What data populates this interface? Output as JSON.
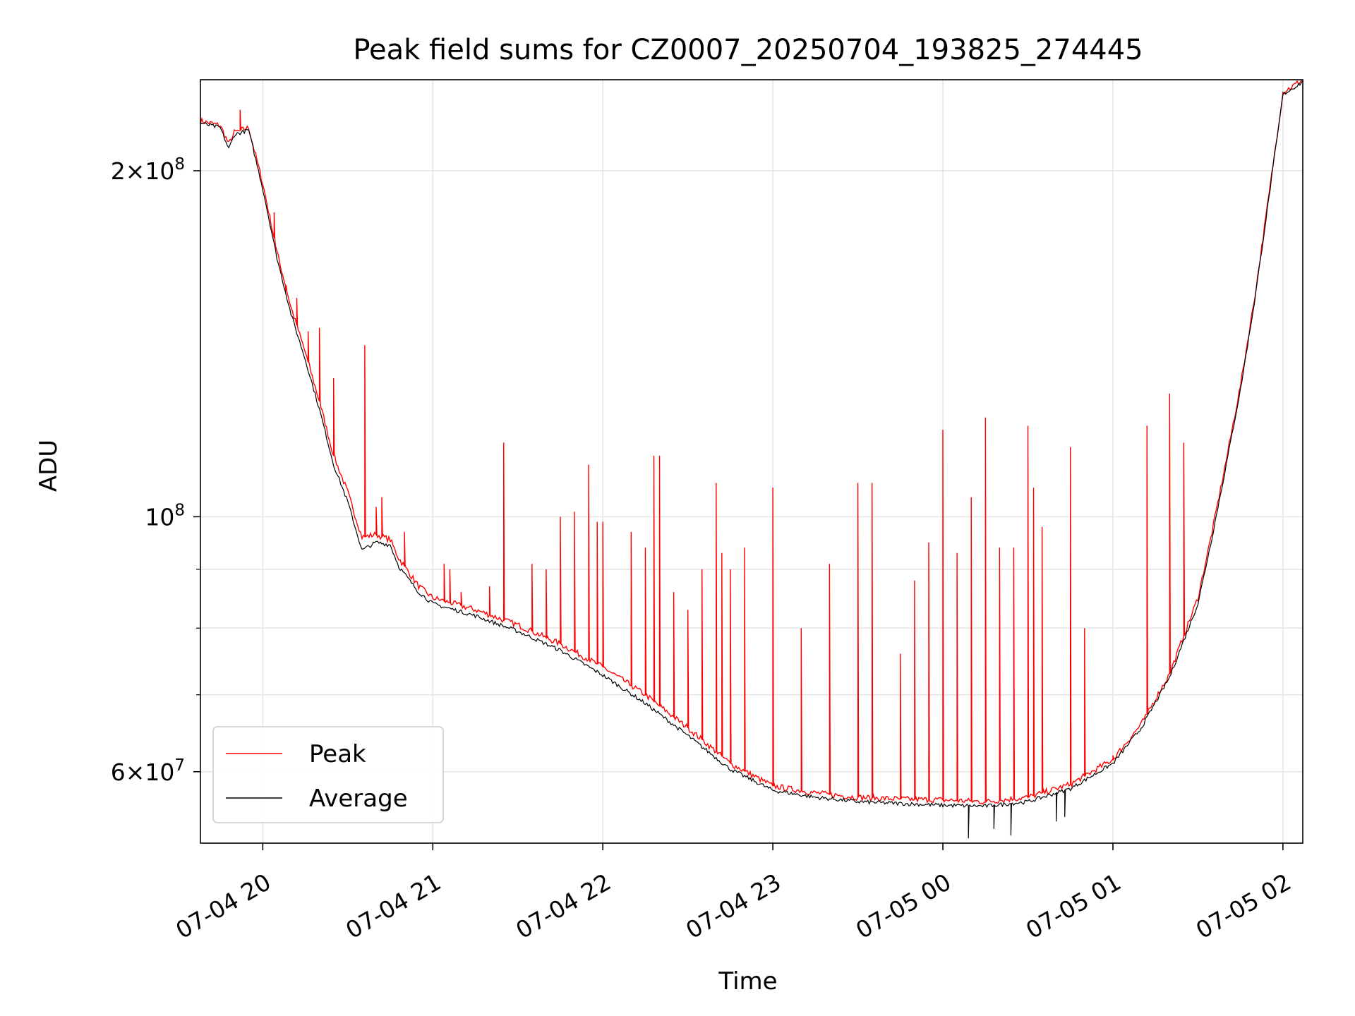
{
  "chart_data": {
    "type": "line",
    "title": "Peak field sums for CZ0007_20250704_193825_274445",
    "xlabel": "Time",
    "ylabel": "ADU",
    "yscale": "log",
    "xlim": [
      "07-04 19:38",
      "07-05 02:07"
    ],
    "ylim": [
      52000000,
      240000000
    ],
    "grid": true,
    "legend_position": "lower-left",
    "x_ticks": [
      "07-04 20",
      "07-04 21",
      "07-04 22",
      "07-04 23",
      "07-05 00",
      "07-05 01",
      "07-05 02"
    ],
    "x_tick_times": [
      "07-04 20:00",
      "07-04 21:00",
      "07-04 22:00",
      "07-04 23:00",
      "07-05 00:00",
      "07-05 01:00",
      "07-05 02:00"
    ],
    "y_major_ticks": [
      {
        "value": 60000000,
        "mantissa": "6",
        "exponent": "7"
      },
      {
        "value": 100000000,
        "mantissa": "",
        "exponent": "8"
      },
      {
        "value": 200000000,
        "mantissa": "2",
        "exponent": "8"
      }
    ],
    "y_minor_ticks": [
      70000000,
      80000000,
      90000000
    ],
    "series": [
      {
        "name": "Peak",
        "color": "#ff0000",
        "baseline": [
          [
            "07-04 19:38",
            221000000
          ],
          [
            "07-04 19:45",
            219000000
          ],
          [
            "07-04 19:48",
            211000000
          ],
          [
            "07-04 19:50",
            216000000
          ],
          [
            "07-04 19:55",
            218000000
          ],
          [
            "07-04 20:00",
            195000000
          ],
          [
            "07-04 20:05",
            170000000
          ],
          [
            "07-04 20:10",
            152000000
          ],
          [
            "07-04 20:15",
            139000000
          ],
          [
            "07-04 20:20",
            126000000
          ],
          [
            "07-04 20:25",
            113000000
          ],
          [
            "07-04 20:30",
            105000000
          ],
          [
            "07-04 20:35",
            96000000
          ],
          [
            "07-04 20:40",
            96500000
          ],
          [
            "07-04 20:45",
            95500000
          ],
          [
            "07-04 20:48",
            92000000
          ],
          [
            "07-04 20:55",
            87000000
          ],
          [
            "07-04 21:00",
            85000000
          ],
          [
            "07-04 21:15",
            83000000
          ],
          [
            "07-04 21:30",
            80500000
          ],
          [
            "07-04 21:45",
            77500000
          ],
          [
            "07-04 22:00",
            74000000
          ],
          [
            "07-04 22:15",
            70000000
          ],
          [
            "07-04 22:30",
            65500000
          ],
          [
            "07-04 22:45",
            61000000
          ],
          [
            "07-04 23:00",
            58300000
          ],
          [
            "07-04 23:15",
            57500000
          ],
          [
            "07-04 23:30",
            57000000
          ],
          [
            "07-04 23:45",
            56800000
          ],
          [
            "07-05 00:00",
            56700000
          ],
          [
            "07-05 00:15",
            56500000
          ],
          [
            "07-05 00:30",
            57000000
          ],
          [
            "07-05 00:45",
            58500000
          ],
          [
            "07-05 01:00",
            61500000
          ],
          [
            "07-05 01:10",
            66000000
          ],
          [
            "07-05 01:20",
            73000000
          ],
          [
            "07-05 01:30",
            85000000
          ],
          [
            "07-05 01:35",
            97000000
          ],
          [
            "07-05 01:40",
            112000000
          ],
          [
            "07-05 01:45",
            130000000
          ],
          [
            "07-05 01:50",
            155000000
          ],
          [
            "07-05 01:55",
            190000000
          ],
          [
            "07-05 02:00",
            234000000
          ],
          [
            "07-05 02:07",
            240000000
          ]
        ],
        "spikes": [
          [
            "07-04 19:52",
            226000000
          ],
          [
            "07-04 20:04",
            184000000
          ],
          [
            "07-04 20:08",
            157000000
          ],
          [
            "07-04 20:12",
            155000000
          ],
          [
            "07-04 20:16",
            145000000
          ],
          [
            "07-04 20:20",
            146000000
          ],
          [
            "07-04 20:25",
            132000000
          ],
          [
            "07-04 20:36",
            141000000
          ],
          [
            "07-04 20:40",
            102000000
          ],
          [
            "07-04 20:42",
            104000000
          ],
          [
            "07-04 20:50",
            97000000
          ],
          [
            "07-04 21:04",
            91000000
          ],
          [
            "07-04 21:06",
            90000000
          ],
          [
            "07-04 21:10",
            86000000
          ],
          [
            "07-04 21:20",
            87000000
          ],
          [
            "07-04 21:25",
            116000000
          ],
          [
            "07-04 21:35",
            91000000
          ],
          [
            "07-04 21:40",
            90000000
          ],
          [
            "07-04 21:45",
            100000000
          ],
          [
            "07-04 21:50",
            101000000
          ],
          [
            "07-04 21:55",
            111000000
          ],
          [
            "07-04 21:58",
            99000000
          ],
          [
            "07-04 22:00",
            99000000
          ],
          [
            "07-04 22:10",
            97000000
          ],
          [
            "07-04 22:15",
            94000000
          ],
          [
            "07-04 22:18",
            113000000
          ],
          [
            "07-04 22:20",
            113000000
          ],
          [
            "07-04 22:25",
            86000000
          ],
          [
            "07-04 22:30",
            83000000
          ],
          [
            "07-04 22:35",
            90000000
          ],
          [
            "07-04 22:40",
            107000000
          ],
          [
            "07-04 22:42",
            93000000
          ],
          [
            "07-04 22:45",
            90000000
          ],
          [
            "07-04 22:50",
            94000000
          ],
          [
            "07-04 23:00",
            106000000
          ],
          [
            "07-04 23:10",
            80000000
          ],
          [
            "07-04 23:20",
            91000000
          ],
          [
            "07-04 23:30",
            107000000
          ],
          [
            "07-04 23:35",
            107000000
          ],
          [
            "07-04 23:45",
            76000000
          ],
          [
            "07-04 23:50",
            88000000
          ],
          [
            "07-04 23:55",
            95000000
          ],
          [
            "07-05 00:00",
            119000000
          ],
          [
            "07-05 00:05",
            93000000
          ],
          [
            "07-05 00:10",
            104000000
          ],
          [
            "07-05 00:15",
            122000000
          ],
          [
            "07-05 00:20",
            94000000
          ],
          [
            "07-05 00:25",
            94000000
          ],
          [
            "07-05 00:30",
            120000000
          ],
          [
            "07-05 00:32",
            106000000
          ],
          [
            "07-05 00:35",
            98000000
          ],
          [
            "07-05 00:45",
            115000000
          ],
          [
            "07-05 00:50",
            80000000
          ],
          [
            "07-05 01:00",
            62000000
          ],
          [
            "07-05 01:12",
            120000000
          ],
          [
            "07-05 01:20",
            128000000
          ],
          [
            "07-05 01:25",
            116000000
          ]
        ]
      },
      {
        "name": "Average",
        "color": "#000000",
        "baseline": [
          [
            "07-04 19:38",
            220000000
          ],
          [
            "07-04 19:45",
            218000000
          ],
          [
            "07-04 19:48",
            209000000
          ],
          [
            "07-04 19:50",
            215000000
          ],
          [
            "07-04 19:55",
            217000000
          ],
          [
            "07-04 20:00",
            193000000
          ],
          [
            "07-04 20:05",
            168000000
          ],
          [
            "07-04 20:10",
            150000000
          ],
          [
            "07-04 20:15",
            137000000
          ],
          [
            "07-04 20:20",
            124000000
          ],
          [
            "07-04 20:25",
            111000000
          ],
          [
            "07-04 20:30",
            103000000
          ],
          [
            "07-04 20:35",
            93500000
          ],
          [
            "07-04 20:40",
            95000000
          ],
          [
            "07-04 20:45",
            94500000
          ],
          [
            "07-04 20:48",
            90500000
          ],
          [
            "07-04 20:55",
            86000000
          ],
          [
            "07-04 21:00",
            84000000
          ],
          [
            "07-04 21:15",
            82000000
          ],
          [
            "07-04 21:30",
            79500000
          ],
          [
            "07-04 21:45",
            76500000
          ],
          [
            "07-04 22:00",
            72800000
          ],
          [
            "07-04 22:15",
            68800000
          ],
          [
            "07-04 22:30",
            64500000
          ],
          [
            "07-04 22:45",
            60300000
          ],
          [
            "07-04 23:00",
            57800000
          ],
          [
            "07-04 23:15",
            57000000
          ],
          [
            "07-04 23:30",
            56500000
          ],
          [
            "07-04 23:45",
            56300000
          ],
          [
            "07-05 00:00",
            56100000
          ],
          [
            "07-05 00:15",
            56000000
          ],
          [
            "07-05 00:30",
            56500000
          ],
          [
            "07-05 00:45",
            58000000
          ],
          [
            "07-05 01:00",
            61000000
          ],
          [
            "07-05 01:10",
            65500000
          ],
          [
            "07-05 01:20",
            72500000
          ],
          [
            "07-05 01:30",
            84000000
          ],
          [
            "07-05 01:35",
            96000000
          ],
          [
            "07-05 01:40",
            111000000
          ],
          [
            "07-05 01:45",
            129000000
          ],
          [
            "07-05 01:50",
            154000000
          ],
          [
            "07-05 01:55",
            189000000
          ],
          [
            "07-05 02:00",
            233000000
          ],
          [
            "07-05 02:07",
            239000000
          ]
        ],
        "dips": [
          [
            "07-05 00:09",
            52500000
          ],
          [
            "07-05 00:18",
            53500000
          ],
          [
            "07-05 00:24",
            52800000
          ],
          [
            "07-05 00:40",
            54300000
          ],
          [
            "07-05 00:43",
            54800000
          ]
        ]
      }
    ]
  }
}
